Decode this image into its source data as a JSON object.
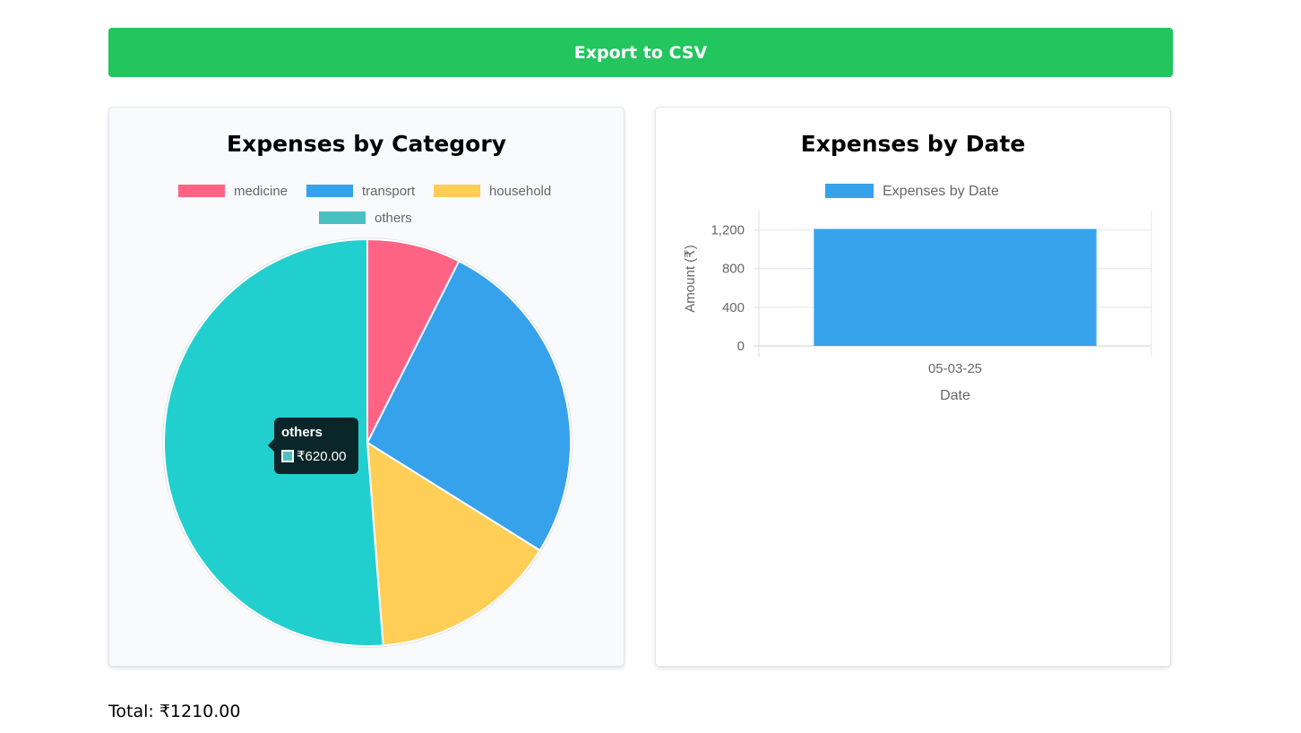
{
  "actions": {
    "export_label": "Export to CSV"
  },
  "colors": {
    "export_button": "#22c55e",
    "medicine": "#ff6384",
    "transport": "#36a2eb",
    "household": "#ffce56",
    "others": "#22cfcf",
    "others_legend": "#4bc0c0",
    "bar": "#36a2eb"
  },
  "tooltip": {
    "title": "others",
    "value": "₹620.00"
  },
  "total": {
    "label": "Total: ₹1210.00"
  },
  "chart_data": [
    {
      "type": "pie",
      "title": "Expenses by Category",
      "categories": [
        "medicine",
        "transport",
        "household",
        "others"
      ],
      "values": [
        90,
        320,
        180,
        620
      ],
      "legend_position": "top"
    },
    {
      "type": "bar",
      "title": "Expenses by Date",
      "categories": [
        "05-03-25"
      ],
      "series": [
        {
          "name": "Expenses by Date",
          "values": [
            1210
          ]
        }
      ],
      "xlabel": "Date",
      "ylabel": "Amount (₹)",
      "ylim": [
        0,
        1400
      ],
      "yticks": [
        0,
        400,
        800,
        1200
      ],
      "ytick_labels": [
        "0",
        "400",
        "800",
        "1,200"
      ],
      "grid": true,
      "legend_position": "top"
    }
  ]
}
